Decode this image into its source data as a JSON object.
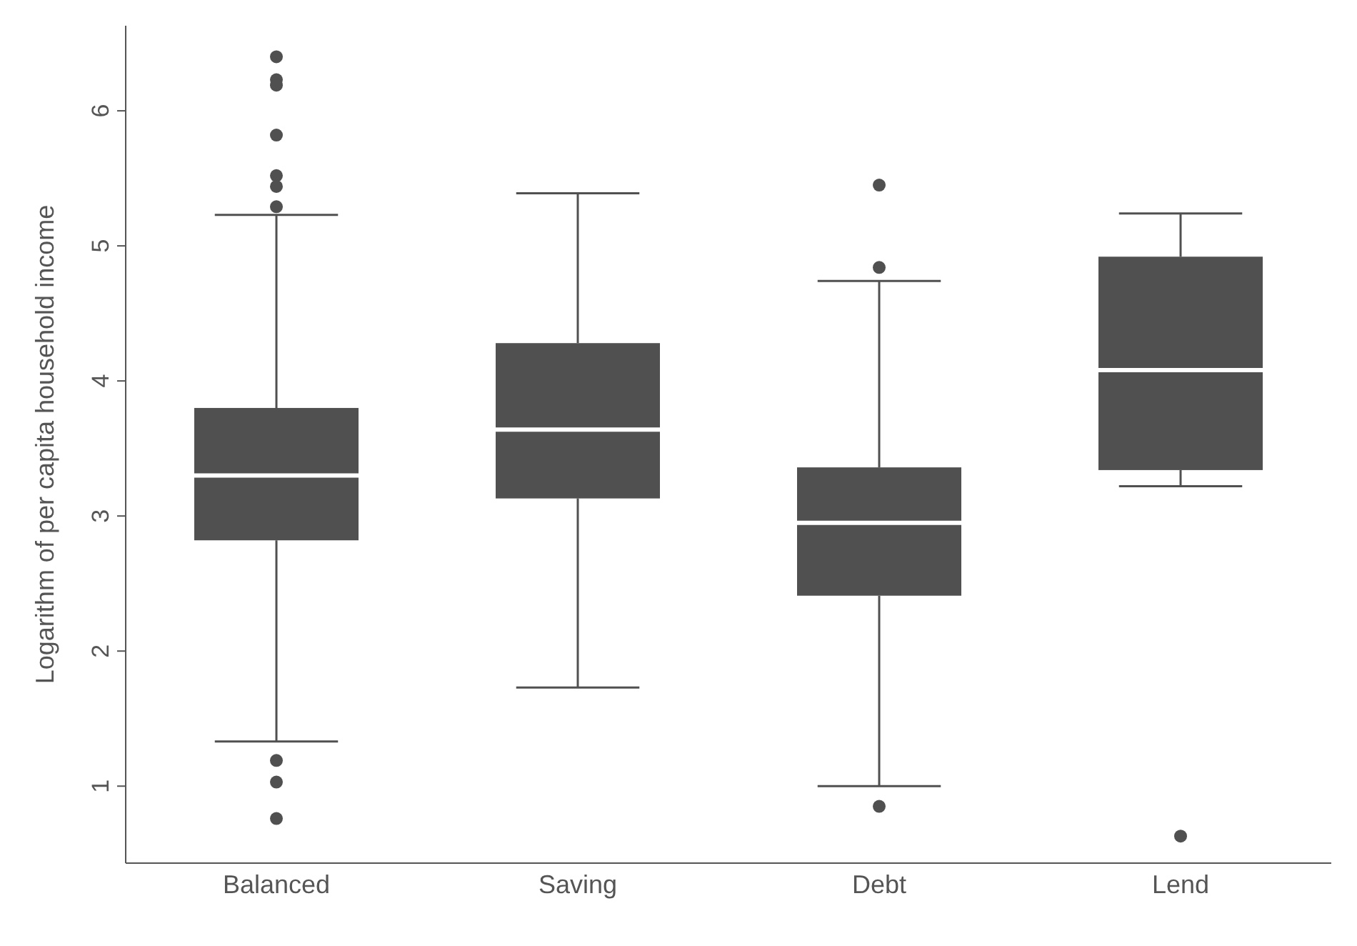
{
  "chart_data": {
    "type": "box",
    "ylabel": "Logarithm of per capita household income",
    "categories": [
      "Balanced",
      "Saving",
      "Debt",
      "Lend"
    ],
    "color": "#505050",
    "ylim": [
      0.43,
      6.63
    ],
    "yticks": [
      1,
      2,
      3,
      4,
      5,
      6
    ],
    "grid": false,
    "legend": false,
    "boxes": [
      {
        "low": 1.33,
        "q1": 2.82,
        "median": 3.3,
        "q3": 3.8,
        "high": 5.23,
        "outliers": [
          6.4,
          6.23,
          6.19,
          5.82,
          5.52,
          5.44,
          5.29,
          1.19,
          1.03,
          0.76
        ]
      },
      {
        "low": 1.73,
        "q1": 3.13,
        "median": 3.64,
        "q3": 4.28,
        "high": 5.39
      },
      {
        "low": 1.0,
        "q1": 2.41,
        "median": 2.95,
        "q3": 3.36,
        "high": 4.74,
        "outliers": [
          5.45,
          4.84,
          0.85
        ]
      },
      {
        "low": 3.22,
        "q1": 3.34,
        "median": 4.08,
        "q3": 4.92,
        "high": 5.24,
        "outliers": [
          0.63
        ]
      }
    ]
  }
}
